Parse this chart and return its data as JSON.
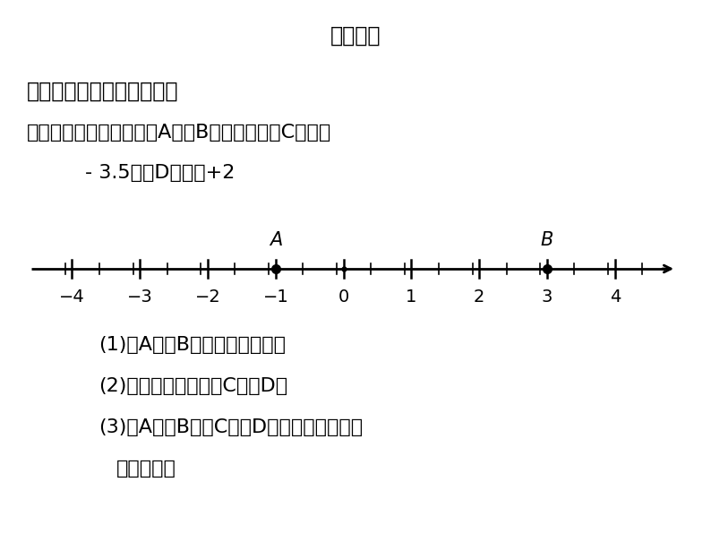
{
  "title": "课堂导学",
  "background_color": "#ffffff",
  "subtitle_bold": "知识点：数轴的概念及画法",
  "example_line1": "【例题】如下图所示，点A，点B在数轴上，点C表示：",
  "example_line2": "- 3.5，点D表示：+2",
  "number_line": {
    "xmin": -4.6,
    "xmax": 4.9,
    "ticks": [
      -4,
      -3,
      -2,
      -1,
      0,
      1,
      2,
      3,
      4
    ],
    "tick_labels": [
      "−4",
      "−3",
      "−2",
      "−1",
      "0",
      "1",
      "2",
      "3",
      "4"
    ],
    "point_A": -1,
    "point_B": 3,
    "point_A_label": "A",
    "point_B_label": "B"
  },
  "questions": [
    "(1)点A，点B分别表示什么数；",
    "(2)在数轴上表示出点C和点D；",
    "(3)点A，点B，点C，点D所表示的数中，哪",
    "些是负数．"
  ],
  "font_color": "#000000",
  "title_fontsize": 17,
  "bold_fontsize": 17,
  "text_fontsize": 16,
  "small_fontsize": 14,
  "nl_label_fontsize": 14,
  "nl_point_fontsize": 15
}
